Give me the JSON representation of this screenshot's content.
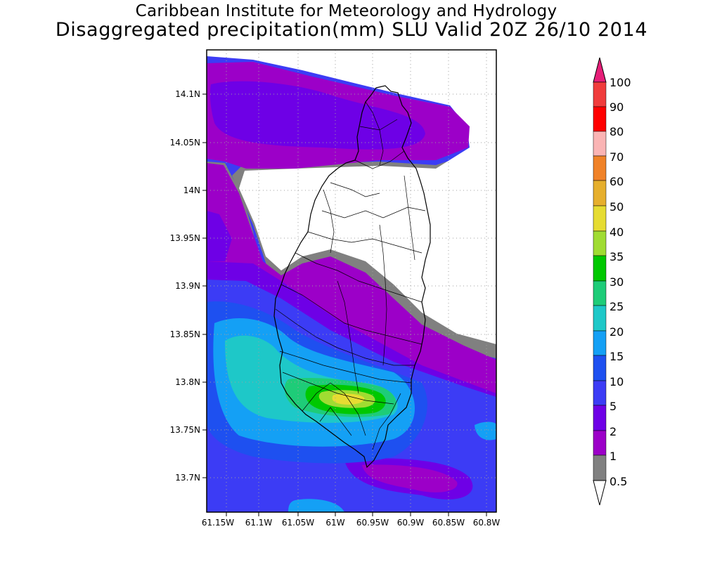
{
  "title": {
    "line1": "Caribbean Institute for Meteorology and Hydrology",
    "line2": "Disaggregated precipitation(mm) SLU Valid 20Z 26/10 2014"
  },
  "map": {
    "lon_ticks": [
      "61.15W",
      "61.1W",
      "61.05W",
      "61W",
      "60.95W",
      "60.9W",
      "60.85W",
      "60.8W"
    ],
    "lat_ticks": [
      "14.1N",
      "14.05N",
      "14N",
      "13.95N",
      "13.9N",
      "13.85N",
      "13.8N",
      "13.75N",
      "13.7N"
    ],
    "grid": "dotted",
    "extent": {
      "lon_min": -61.165,
      "lon_max": -60.795,
      "lat_min": 13.663,
      "lat_max": 14.147
    }
  },
  "colorbar": {
    "levels": [
      "0.5",
      "1",
      "2",
      "5",
      "10",
      "15",
      "20",
      "25",
      "30",
      "35",
      "40",
      "50",
      "60",
      "70",
      "80",
      "90",
      "100"
    ],
    "colors": {
      "lt0.5": "#ffffff",
      "0.5-1": "#808080",
      "1-2": "#9c00c8",
      "2-5": "#6e00e6",
      "5-10": "#3c3cf5",
      "10-15": "#1e50f0",
      "15-20": "#14a0f5",
      "20-25": "#1ec8c8",
      "25-30": "#1ecc78",
      "30-35": "#00c800",
      "35-40": "#a0dc32",
      "40-50": "#e6dc32",
      "50-60": "#e6af2d",
      "60-70": "#f08228",
      "70-80": "#fab4b4",
      "80-90": "#ff0000",
      "90-100": "#f03c3c",
      "gt100": "#e61e78"
    }
  }
}
